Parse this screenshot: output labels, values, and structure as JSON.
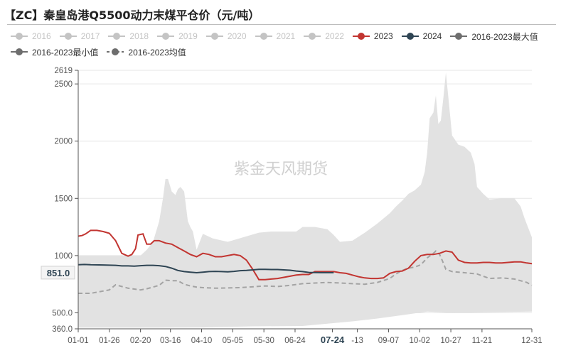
{
  "header": {
    "title": "【ZC】秦皇岛港Q5500动力末煤平仓价（元/吨）"
  },
  "watermark": "紫金天风期货",
  "legend": [
    {
      "label": "2016",
      "color": "#c4c4c4",
      "active": false,
      "dashed": false
    },
    {
      "label": "2017",
      "color": "#c4c4c4",
      "active": false,
      "dashed": false
    },
    {
      "label": "2018",
      "color": "#c4c4c4",
      "active": false,
      "dashed": false
    },
    {
      "label": "2019",
      "color": "#c4c4c4",
      "active": false,
      "dashed": false
    },
    {
      "label": "2020",
      "color": "#c4c4c4",
      "active": false,
      "dashed": false
    },
    {
      "label": "2021",
      "color": "#c4c4c4",
      "active": false,
      "dashed": false
    },
    {
      "label": "2022",
      "color": "#c4c4c4",
      "active": false,
      "dashed": false
    },
    {
      "label": "2023",
      "color": "#c23531",
      "active": true,
      "dashed": false
    },
    {
      "label": "2024",
      "color": "#2f4554",
      "active": true,
      "dashed": false
    },
    {
      "label": "2016-2023最大值",
      "color": "#6e6e6e",
      "active": true,
      "dashed": false
    },
    {
      "label": "2016-2023最小值",
      "color": "#6e6e6e",
      "active": true,
      "dashed": false
    },
    {
      "label": "2016-2023均值",
      "color": "#6e6e6e",
      "active": true,
      "dashed": true
    }
  ],
  "chart_data": {
    "type": "line",
    "title": "【ZC】秦皇岛港Q5500动力末煤平仓价（元/吨）",
    "x_type": "day-of-year",
    "x_ticks": [
      "01-01",
      "01-26",
      "02-20",
      "03-16",
      "04-10",
      "05-05",
      "05-30",
      "06-24",
      "07-24",
      "-13",
      "09-07",
      "10-02",
      "10-27",
      "11-21",
      "12-31"
    ],
    "x_tick_days": [
      0,
      25,
      50,
      74,
      99,
      124,
      149,
      174,
      204,
      224,
      249,
      274,
      299,
      324,
      364
    ],
    "highlight_tick": "07-24",
    "ylim": [
      360,
      2619
    ],
    "y_ticks": [
      360,
      500,
      1000,
      1500,
      2000,
      2500,
      2619
    ],
    "y_tick_labels": [
      "360.0",
      "500.0",
      "1000",
      "1500",
      "2000",
      "2500",
      "2619"
    ],
    "y_marker": {
      "value": 851,
      "label": "851.0"
    },
    "grid": true,
    "colors": {
      "y2023": "#c23531",
      "y2024": "#2f4554",
      "band": "#e2e2e2",
      "mean": "#a3a3a3"
    },
    "band_max": {
      "x": [
        0,
        30,
        50,
        55,
        60,
        65,
        68,
        70,
        72,
        75,
        78,
        80,
        82,
        85,
        88,
        90,
        92,
        95,
        100,
        108,
        120,
        145,
        155,
        160,
        165,
        170,
        175,
        180,
        190,
        200,
        205,
        210,
        220,
        230,
        240,
        250,
        255,
        260,
        265,
        270,
        275,
        278,
        280,
        282,
        285,
        287,
        289,
        291,
        293,
        295,
        297,
        300,
        305,
        310,
        315,
        318,
        320,
        325,
        330,
        340,
        350,
        355,
        358,
        364
      ],
      "y": [
        1000,
        1000,
        1000,
        1050,
        1120,
        1300,
        1500,
        1670,
        1670,
        1560,
        1530,
        1580,
        1600,
        1560,
        1300,
        1250,
        1210,
        1050,
        1190,
        1150,
        1120,
        1200,
        1210,
        1210,
        1210,
        1210,
        1210,
        1250,
        1250,
        1230,
        1180,
        1120,
        1130,
        1200,
        1280,
        1370,
        1430,
        1480,
        1540,
        1570,
        1620,
        1730,
        1900,
        2200,
        2250,
        2400,
        2150,
        2180,
        2380,
        2600,
        2380,
        2050,
        1970,
        1950,
        1900,
        1800,
        1600,
        1540,
        1490,
        1500,
        1500,
        1430,
        1330,
        1160
      ]
    },
    "band_min": {
      "x": [
        0,
        40,
        60,
        100,
        140,
        180,
        200,
        220,
        240,
        260,
        280,
        300,
        330,
        364
      ],
      "y": [
        370,
        370,
        370,
        372,
        382,
        385,
        405,
        425,
        450,
        480,
        510,
        500,
        505,
        510
      ]
    },
    "mean": {
      "x": [
        0,
        10,
        20,
        25,
        30,
        40,
        50,
        55,
        60,
        65,
        70,
        75,
        80,
        85,
        90,
        95,
        100,
        110,
        130,
        150,
        160,
        170,
        180,
        190,
        200,
        210,
        220,
        230,
        240,
        250,
        255,
        260,
        265,
        270,
        275,
        280,
        285,
        287,
        290,
        292,
        295,
        300,
        310,
        320,
        330,
        340,
        350,
        360,
        364
      ],
      "y": [
        670,
        670,
        690,
        700,
        745,
        715,
        700,
        710,
        725,
        740,
        785,
        780,
        780,
        750,
        735,
        725,
        720,
        715,
        720,
        735,
        730,
        740,
        755,
        760,
        765,
        760,
        755,
        750,
        765,
        800,
        840,
        870,
        890,
        900,
        920,
        980,
        1020,
        1040,
        1010,
        960,
        880,
        860,
        850,
        840,
        800,
        805,
        795,
        765,
        740
      ]
    },
    "series": [
      {
        "name": "2023",
        "color": "#c23531",
        "x": [
          0,
          3,
          6,
          10,
          15,
          20,
          25,
          30,
          35,
          40,
          43,
          46,
          48,
          52,
          55,
          58,
          61,
          63,
          65,
          70,
          75,
          80,
          85,
          90,
          95,
          100,
          105,
          110,
          115,
          120,
          125,
          130,
          135,
          140,
          145,
          150,
          155,
          160,
          165,
          170,
          175,
          180,
          185,
          190,
          195,
          200,
          205,
          210,
          215,
          220,
          225,
          230,
          235,
          240,
          245,
          250,
          255,
          260,
          265,
          270,
          275,
          280,
          285,
          290,
          295,
          300,
          305,
          310,
          315,
          320,
          325,
          330,
          335,
          340,
          345,
          350,
          355,
          360,
          364
        ],
        "y": [
          1170,
          1175,
          1190,
          1220,
          1220,
          1210,
          1195,
          1130,
          1020,
          995,
          1010,
          1060,
          1180,
          1190,
          1100,
          1100,
          1130,
          1130,
          1130,
          1110,
          1100,
          1070,
          1040,
          1010,
          990,
          1020,
          1010,
          990,
          990,
          1000,
          1010,
          1000,
          960,
          880,
          790,
          790,
          795,
          800,
          810,
          820,
          830,
          835,
          835,
          860,
          860,
          860,
          860,
          850,
          845,
          830,
          815,
          805,
          800,
          800,
          805,
          845,
          860,
          865,
          890,
          950,
          1000,
          1010,
          1010,
          1020,
          1040,
          1030,
          960,
          940,
          935,
          935,
          940,
          940,
          935,
          935,
          940,
          945,
          945,
          935,
          930
        ]
      },
      {
        "name": "2024",
        "color": "#2f4554",
        "x": [
          0,
          5,
          10,
          20,
          30,
          35,
          40,
          45,
          50,
          55,
          60,
          65,
          70,
          75,
          80,
          85,
          90,
          95,
          100,
          105,
          110,
          115,
          120,
          125,
          130,
          135,
          140,
          145,
          150,
          155,
          160,
          165,
          170,
          175,
          180,
          185,
          190,
          195,
          200,
          205
        ],
        "y": [
          920,
          922,
          920,
          918,
          915,
          910,
          910,
          908,
          912,
          915,
          915,
          912,
          905,
          890,
          870,
          860,
          855,
          850,
          855,
          860,
          862,
          860,
          858,
          862,
          868,
          870,
          875,
          880,
          880,
          878,
          878,
          875,
          872,
          865,
          860,
          853,
          852,
          851,
          851,
          851
        ]
      }
    ]
  }
}
